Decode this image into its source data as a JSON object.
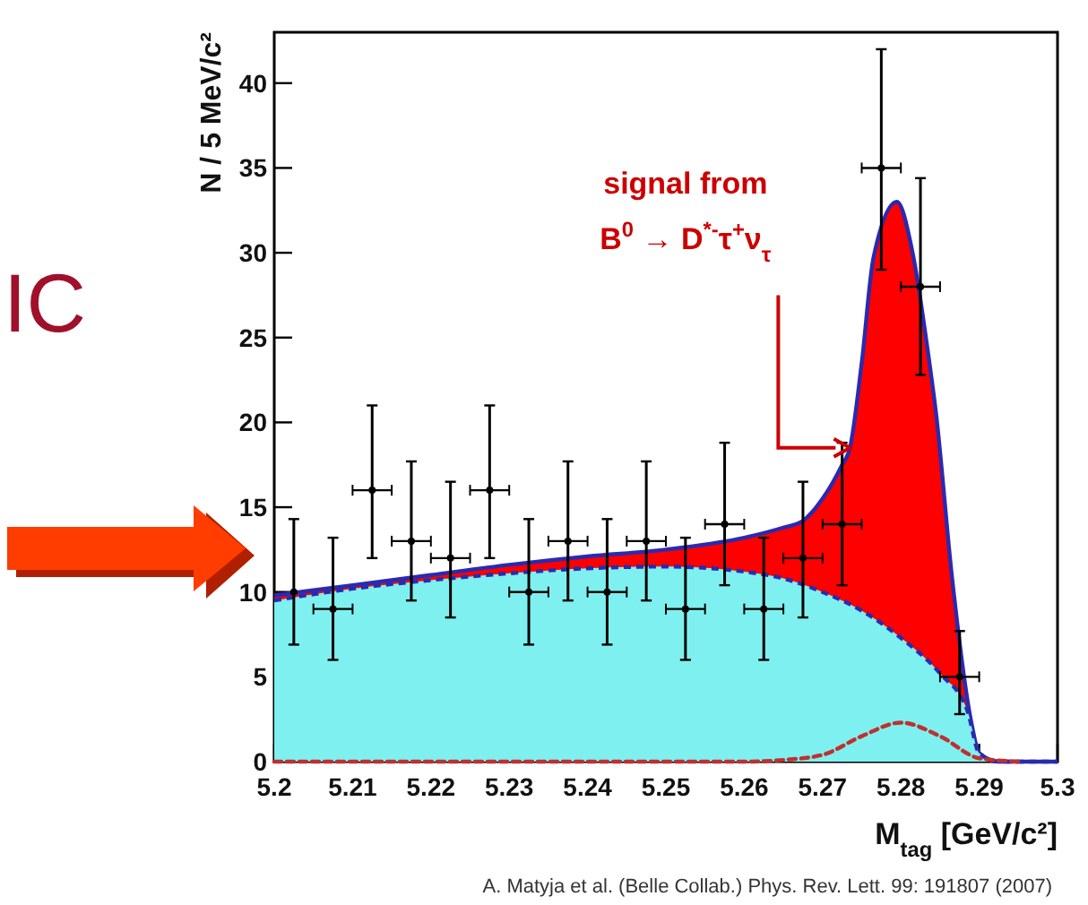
{
  "chart_data": {
    "type": "scatter",
    "xlabel": "M$_{tag}$ [GeV/c²]",
    "ylabel": "N / 5 MeV/c²",
    "xlim": [
      5.2,
      5.3
    ],
    "xticks": [
      5.2,
      5.21,
      5.22,
      5.23,
      5.24,
      5.25,
      5.26,
      5.27,
      5.28,
      5.29,
      5.3
    ],
    "ylim": [
      0,
      43
    ],
    "yticks": [
      0,
      5,
      10,
      15,
      20,
      25,
      30,
      35,
      40
    ],
    "grid": false,
    "series": [
      {
        "type": "area",
        "color": "#ff0000",
        "line_style": "solid",
        "x": [
          5.2,
          5.21,
          5.22,
          5.23,
          5.24,
          5.25,
          5.26,
          5.265,
          5.2675,
          5.27,
          5.2725,
          5.2735,
          5.275,
          5.2765,
          5.2795,
          5.2815,
          5.2835,
          5.2845,
          5.2865,
          5.289,
          5.29,
          5.2925,
          5.3
        ],
        "values": [
          9.8,
          10.4,
          11.0,
          11.6,
          12.1,
          12.5,
          13.2,
          13.8,
          14.2,
          15.5,
          17.5,
          18.5,
          23.5,
          29.7,
          33,
          30,
          24,
          20.5,
          11,
          2.3,
          0.5,
          0,
          0
        ]
      },
      {
        "type": "area",
        "color": "#7ff0f0",
        "line_style": "dashed",
        "x": [
          5.2,
          5.21,
          5.22,
          5.23,
          5.24,
          5.25,
          5.26,
          5.265,
          5.27,
          5.275,
          5.28,
          5.285,
          5.2885,
          5.29,
          5.2925,
          5.3
        ],
        "values": [
          9.5,
          10.2,
          10.7,
          11.1,
          11.4,
          11.5,
          11.2,
          10.8,
          10.0,
          8.9,
          7.3,
          5.2,
          3,
          0.5,
          0,
          0
        ]
      },
      {
        "type": "line",
        "color": "#c03030",
        "line_style": "dashed",
        "x": [
          5.2,
          5.26,
          5.265,
          5.27,
          5.275,
          5.28,
          5.285,
          5.29,
          5.295
        ],
        "values": [
          0,
          0,
          0.1,
          0.4,
          1.5,
          2.3,
          1.5,
          0.2,
          0
        ]
      },
      {
        "color": "#000000",
        "marker": "circle",
        "x": [
          5.2025,
          5.2075,
          5.2125,
          5.2175,
          5.2225,
          5.2275,
          5.2325,
          5.2375,
          5.2425,
          5.2475,
          5.2525,
          5.2575,
          5.2625,
          5.2675,
          5.2725,
          5.2775,
          5.2825,
          5.2875
        ],
        "values": [
          10,
          9,
          16,
          13,
          12,
          16,
          10,
          13,
          10,
          13,
          9,
          14,
          9,
          12,
          14,
          35,
          28,
          5
        ],
        "errors": [
          [
            6.9,
            14.3
          ],
          [
            6,
            13.2
          ],
          [
            12,
            21
          ],
          [
            9.5,
            17.7
          ],
          [
            8.5,
            16.5
          ],
          [
            12,
            21
          ],
          [
            6.9,
            14.3
          ],
          [
            9.5,
            17.7
          ],
          [
            6.9,
            14.3
          ],
          [
            9.5,
            17.7
          ],
          [
            6,
            13.2
          ],
          [
            10.4,
            18.8
          ],
          [
            6,
            13.2
          ],
          [
            8.5,
            16.5
          ],
          [
            10.4,
            18.8
          ],
          [
            29,
            42
          ],
          [
            22.8,
            34.4
          ],
          [
            2.8,
            7.7
          ]
        ],
        "xerrors": [
          null,
          0.0025,
          0.0025,
          0.0025,
          0.0025,
          0.0025,
          0.0025,
          0.0025,
          0.0025,
          0.0025,
          0.0025,
          0.0025,
          0.0025,
          0.0025,
          0.0025,
          0.0025,
          0.0025,
          0.0025
        ]
      }
    ],
    "annotations": [
      "signal from",
      {
        "text": "B$^{0}$ → D$^{*-}$τ$^{+}$ν$_{τ}$",
        "x": 5.2735,
        "y": 18.5
      },
      "A. Matyja et al. (Belle Collab.) Phys. Rev. Lett. 99: 191807 (2007)",
      "IC"
    ]
  }
}
